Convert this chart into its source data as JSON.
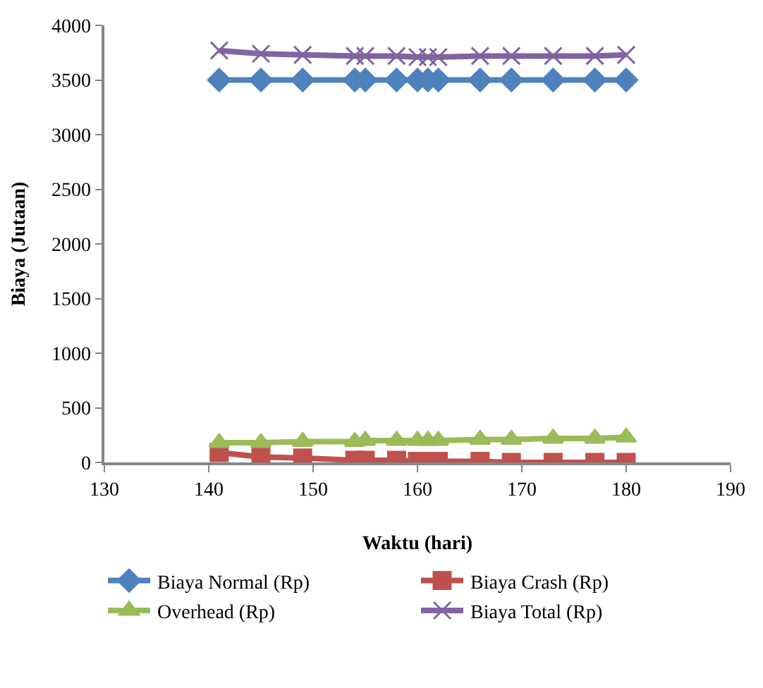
{
  "chart_data": {
    "type": "line",
    "xlabel": "Waktu (hari)",
    "ylabel": "Biaya (Jutaan)",
    "x": [
      141,
      145,
      149,
      154,
      155,
      158,
      160,
      161,
      162,
      166,
      169,
      173,
      177,
      180
    ],
    "series": [
      {
        "name": "Biaya Normal (Rp)",
        "color": "#4f81bd",
        "marker": "diamond",
        "values": [
          3500,
          3500,
          3500,
          3500,
          3500,
          3500,
          3500,
          3500,
          3500,
          3500,
          3500,
          3500,
          3500,
          3500
        ]
      },
      {
        "name": "Biaya Crash (Rp)",
        "color": "#c0504d",
        "marker": "square",
        "values": [
          90,
          50,
          40,
          20,
          20,
          20,
          10,
          10,
          10,
          10,
          0,
          0,
          0,
          0
        ]
      },
      {
        "name": "Overhead (Rp)",
        "color": "#9bbb59",
        "marker": "triangle",
        "values": [
          180,
          180,
          190,
          190,
          200,
          200,
          200,
          200,
          200,
          210,
          210,
          220,
          220,
          230
        ]
      },
      {
        "name": "Biaya Total (Rp)",
        "color": "#8064a2",
        "marker": "cross",
        "values": [
          3770,
          3740,
          3730,
          3720,
          3720,
          3720,
          3710,
          3710,
          3710,
          3720,
          3720,
          3720,
          3720,
          3730
        ]
      }
    ],
    "xlim": [
      130,
      190
    ],
    "xticks": [
      130,
      140,
      150,
      160,
      170,
      180,
      190
    ],
    "ylim": [
      0,
      4000
    ],
    "yticks": [
      0,
      500,
      1000,
      1500,
      2000,
      2500,
      3000,
      3500,
      4000
    ],
    "legend": "bottom",
    "line_style": "solid"
  }
}
